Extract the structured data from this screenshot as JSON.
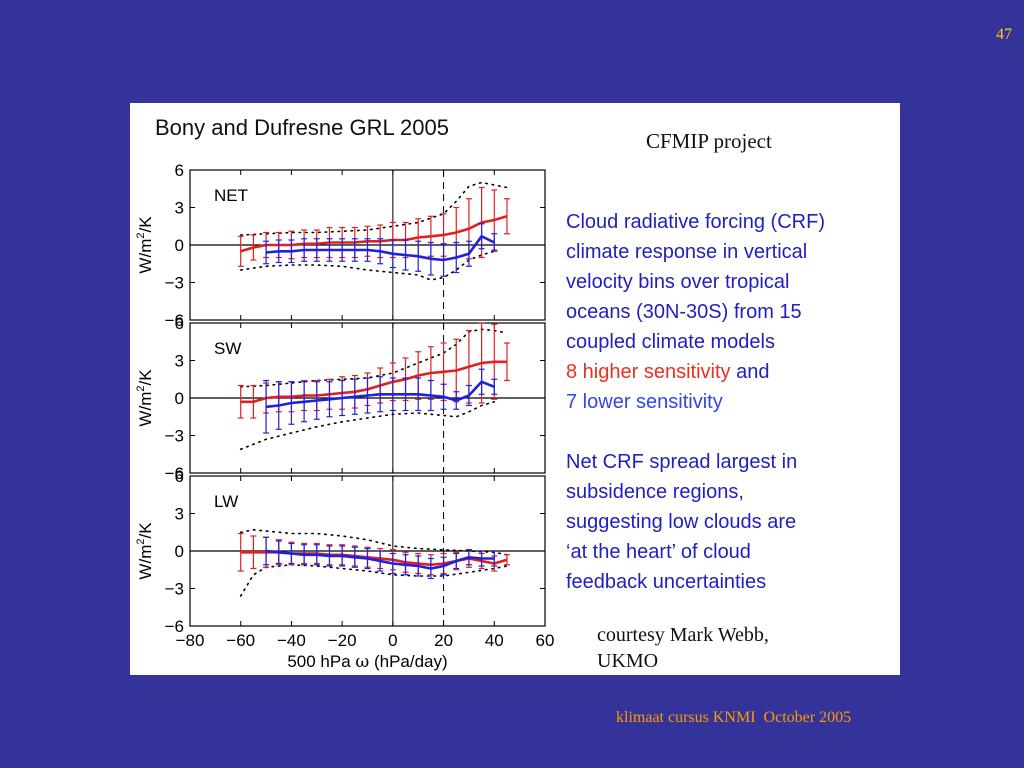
{
  "slide_number": "47",
  "footer": "klimaat cursus KNMI  October 2005",
  "figure": {
    "title": "Bony and Dufresne GRL 2005",
    "project": "CFMIP project",
    "description": [
      {
        "text": "Cloud radiative forcing (CRF)",
        "color": "#1f1fbf"
      },
      {
        "text": "climate response in vertical",
        "color": "#1f1fbf"
      },
      {
        "text": "velocity bins over tropical",
        "color": "#1f1fbf"
      },
      {
        "text": "oceans (30N-30S) from 15",
        "color": "#1f1fbf"
      },
      {
        "text": "coupled climate models",
        "color": "#1f1fbf"
      }
    ],
    "higher_line": {
      "red": "8 higher sensitivity",
      "rest": " and"
    },
    "lower_line": "7 lower sensitivity",
    "spread_lines": [
      "Net CRF spread largest in",
      "subsidence regions,",
      "suggesting low clouds are",
      "‘at the heart’ of cloud",
      "feedback uncertainties"
    ],
    "courtesy_lines": [
      "courtesy Mark Webb,",
      "UKMO"
    ]
  },
  "chart_data": [
    {
      "type": "line",
      "panel_label": "NET",
      "ylabel_parts": [
        "W/m",
        "2",
        "/K"
      ],
      "xlim": [
        -80,
        60
      ],
      "ylim": [
        -6,
        6
      ],
      "x_ticks": [
        -80,
        -60,
        -40,
        -20,
        0,
        20,
        40,
        60
      ],
      "y_ticks": [
        6,
        3,
        0,
        -3,
        -6
      ],
      "vlines": [
        {
          "x": 0,
          "style": "solid"
        },
        {
          "x": 20,
          "style": "dashed"
        }
      ],
      "series": [
        {
          "color": "#e02020",
          "x": [
            -60,
            -55,
            -50,
            -45,
            -40,
            -35,
            -30,
            -25,
            -20,
            -15,
            -10,
            -5,
            0,
            5,
            10,
            15,
            20,
            25,
            30,
            35,
            40,
            45
          ],
          "values": [
            -0.5,
            -0.2,
            0.0,
            0.0,
            0.0,
            0.1,
            0.1,
            0.2,
            0.2,
            0.2,
            0.3,
            0.3,
            0.4,
            0.4,
            0.6,
            0.7,
            0.8,
            1.0,
            1.3,
            1.8,
            2.0,
            2.3
          ],
          "error": [
            1.2,
            1.0,
            1.0,
            1.0,
            1.1,
            1.1,
            1.1,
            1.2,
            1.2,
            1.2,
            1.2,
            1.3,
            1.4,
            1.4,
            1.5,
            1.6,
            1.7,
            2.0,
            2.4,
            2.8,
            2.4,
            1.4
          ]
        },
        {
          "color": "#2020dd",
          "x": [
            -50,
            -45,
            -40,
            -35,
            -30,
            -25,
            -20,
            -15,
            -10,
            -5,
            0,
            5,
            10,
            15,
            20,
            25,
            30,
            35,
            40
          ],
          "values": [
            -0.6,
            -0.5,
            -0.5,
            -0.4,
            -0.4,
            -0.4,
            -0.4,
            -0.4,
            -0.4,
            -0.5,
            -0.7,
            -0.8,
            -0.9,
            -1.1,
            -1.2,
            -1.0,
            -0.7,
            0.7,
            0.2
          ],
          "error": [
            0.9,
            0.9,
            0.9,
            0.9,
            0.9,
            0.9,
            0.9,
            0.9,
            0.9,
            1.0,
            1.1,
            1.2,
            1.2,
            1.3,
            1.3,
            1.2,
            1.0,
            1.0,
            0.7
          ]
        }
      ],
      "spread_upper": {
        "x": [
          -60,
          -50,
          -40,
          -30,
          -20,
          -10,
          0,
          10,
          20,
          25,
          30,
          35,
          40,
          45
        ],
        "values": [
          0.8,
          0.9,
          1.0,
          1.0,
          1.1,
          1.2,
          1.5,
          1.8,
          2.5,
          3.5,
          4.7,
          5.0,
          4.8,
          4.6
        ]
      },
      "spread_lower": {
        "x": [
          -60,
          -50,
          -40,
          -30,
          -20,
          -10,
          0,
          10,
          15,
          20,
          25,
          30,
          35,
          40
        ],
        "values": [
          -2.0,
          -1.7,
          -1.6,
          -1.6,
          -1.7,
          -2.0,
          -2.2,
          -2.4,
          -2.8,
          -2.6,
          -2.0,
          -1.2,
          -0.8,
          -0.5
        ]
      }
    },
    {
      "type": "line",
      "panel_label": "SW",
      "ylabel_parts": [
        "W/m",
        "2",
        "/K"
      ],
      "xlim": [
        -80,
        60
      ],
      "ylim": [
        -6,
        6
      ],
      "x_ticks": [
        -80,
        -60,
        -40,
        -20,
        0,
        20,
        40,
        60
      ],
      "y_ticks": [
        6,
        3,
        0,
        -3,
        -6
      ],
      "vlines": [
        {
          "x": 0,
          "style": "solid"
        },
        {
          "x": 20,
          "style": "dashed"
        }
      ],
      "series": [
        {
          "color": "#e02020",
          "x": [
            -60,
            -55,
            -50,
            -45,
            -40,
            -35,
            -30,
            -25,
            -20,
            -15,
            -10,
            -5,
            0,
            5,
            10,
            15,
            20,
            25,
            30,
            35,
            40,
            45
          ],
          "values": [
            -0.3,
            -0.3,
            0.0,
            0.1,
            0.1,
            0.2,
            0.2,
            0.3,
            0.4,
            0.5,
            0.7,
            1.0,
            1.3,
            1.5,
            1.8,
            2.0,
            2.1,
            2.2,
            2.5,
            2.8,
            2.9,
            2.9
          ],
          "error": [
            1.3,
            1.3,
            1.2,
            1.2,
            1.2,
            1.2,
            1.2,
            1.2,
            1.3,
            1.3,
            1.3,
            1.4,
            1.5,
            1.7,
            1.9,
            2.1,
            2.3,
            2.5,
            2.9,
            3.2,
            3.0,
            1.5
          ]
        },
        {
          "color": "#2020dd",
          "x": [
            -50,
            -45,
            -40,
            -35,
            -30,
            -25,
            -20,
            -15,
            -10,
            -5,
            0,
            5,
            10,
            15,
            20,
            25,
            30,
            35,
            40
          ],
          "values": [
            -0.7,
            -0.6,
            -0.4,
            -0.3,
            -0.2,
            -0.1,
            0.0,
            0.1,
            0.2,
            0.3,
            0.3,
            0.3,
            0.3,
            0.2,
            0.1,
            -0.2,
            0.2,
            1.3,
            0.9
          ],
          "error": [
            2.1,
            1.9,
            1.7,
            1.6,
            1.5,
            1.4,
            1.4,
            1.4,
            1.4,
            1.4,
            1.3,
            1.3,
            1.3,
            1.2,
            1.0,
            0.7,
            0.8,
            1.0,
            0.6
          ]
        }
      ],
      "spread_upper": {
        "x": [
          -60,
          -50,
          -40,
          -30,
          -20,
          -10,
          0,
          10,
          20,
          25,
          30,
          35,
          40,
          45
        ],
        "values": [
          0.9,
          1.0,
          1.2,
          1.4,
          1.5,
          1.6,
          2.0,
          2.8,
          3.6,
          4.3,
          5.3,
          5.5,
          5.4,
          5.2
        ]
      },
      "spread_lower": {
        "x": [
          -60,
          -50,
          -40,
          -30,
          -20,
          -10,
          0,
          10,
          15,
          20,
          25,
          30,
          35,
          40
        ],
        "values": [
          -4.1,
          -3.3,
          -2.8,
          -2.3,
          -1.9,
          -1.6,
          -1.3,
          -1.2,
          -1.3,
          -1.4,
          -1.5,
          -1.1,
          -0.6,
          -0.3
        ]
      }
    },
    {
      "type": "line",
      "panel_label": "LW",
      "ylabel_parts": [
        "W/m",
        "2",
        "/K"
      ],
      "xlabel_parts": [
        "500 hPa ",
        "ω",
        " (hPa/day)"
      ],
      "xlim": [
        -80,
        60
      ],
      "ylim": [
        -6,
        6
      ],
      "x_ticks": [
        -80,
        -60,
        -40,
        -20,
        0,
        20,
        40,
        60
      ],
      "y_ticks": [
        6,
        3,
        0,
        -3,
        -6
      ],
      "vlines": [
        {
          "x": 0,
          "style": "solid"
        },
        {
          "x": 20,
          "style": "dashed"
        }
      ],
      "series": [
        {
          "color": "#e02020",
          "x": [
            -60,
            -55,
            -50,
            -45,
            -40,
            -35,
            -30,
            -25,
            -20,
            -15,
            -10,
            -5,
            0,
            5,
            10,
            15,
            20,
            25,
            30,
            35,
            40,
            45
          ],
          "values": [
            -0.1,
            -0.1,
            -0.1,
            -0.1,
            -0.2,
            -0.2,
            -0.2,
            -0.3,
            -0.3,
            -0.4,
            -0.5,
            -0.6,
            -0.7,
            -0.9,
            -1.0,
            -1.1,
            -1.0,
            -0.8,
            -0.6,
            -0.8,
            -1.0,
            -0.7
          ],
          "error": [
            1.5,
            1.3,
            1.2,
            1.0,
            0.9,
            0.8,
            0.8,
            0.8,
            0.8,
            0.8,
            0.8,
            0.8,
            0.8,
            0.8,
            0.8,
            0.8,
            0.8,
            0.7,
            0.7,
            0.6,
            0.6,
            0.4
          ]
        },
        {
          "color": "#2020dd",
          "x": [
            -50,
            -45,
            -40,
            -35,
            -30,
            -25,
            -20,
            -15,
            -10,
            -5,
            0,
            5,
            10,
            15,
            20,
            25,
            30,
            35,
            40
          ],
          "values": [
            0.0,
            -0.1,
            -0.2,
            -0.3,
            -0.3,
            -0.4,
            -0.4,
            -0.5,
            -0.6,
            -0.8,
            -1.0,
            -1.1,
            -1.2,
            -1.4,
            -1.2,
            -0.8,
            -0.5,
            -0.6,
            -0.6
          ],
          "error": [
            1.1,
            0.9,
            0.8,
            0.8,
            0.8,
            0.8,
            0.8,
            0.8,
            0.8,
            0.8,
            0.8,
            0.8,
            0.8,
            0.8,
            0.7,
            0.6,
            0.6,
            0.6,
            0.6
          ]
        }
      ],
      "spread_upper": {
        "x": [
          -60,
          -55,
          -50,
          -40,
          -30,
          -20,
          -10,
          0,
          10,
          20,
          30,
          40,
          45
        ],
        "values": [
          1.5,
          1.7,
          1.6,
          1.4,
          1.4,
          1.2,
          0.9,
          0.4,
          0.2,
          0.1,
          0.0,
          -0.1,
          -0.3
        ]
      },
      "spread_lower": {
        "x": [
          -60,
          -55,
          -50,
          -40,
          -30,
          -20,
          -10,
          0,
          10,
          20,
          30,
          40,
          45
        ],
        "values": [
          -3.6,
          -1.9,
          -1.3,
          -1.1,
          -1.2,
          -1.4,
          -1.6,
          -1.9,
          -2.0,
          -2.0,
          -1.7,
          -1.4,
          -1.2
        ]
      }
    }
  ]
}
